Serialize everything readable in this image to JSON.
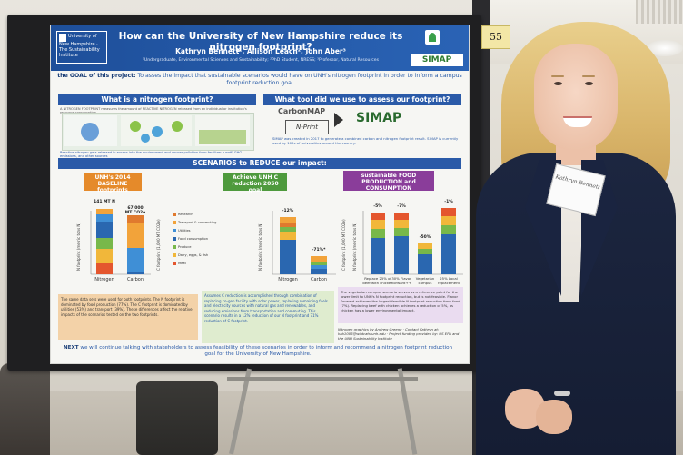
{
  "scene": {
    "board_number": "55",
    "badge_text": "Kathryn Bennett"
  },
  "poster": {
    "logo_text": "University of New Hampshire · The Sustainability Institute",
    "title": "How can the University of New Hampshire reduce its nitrogen footprint?",
    "authors": "Kathryn Bennett¹, Allison Leach², John Aber³",
    "affiliations": "¹Undergraduate, Environmental Sciences and Sustainability; ²PhD Student, NRESS; ³Professor, Natural Resources",
    "simap_top": "SIMAP",
    "goal_prefix": "the GOAL of this project:",
    "goal_text": "To asses the impact that sustainable scenarios would have on UNH's nitrogen footprint in order to inform a campus footprint reduction goal",
    "sec_what": "What is a nitrogen footprint?",
    "what_text": "A NITROGEN FOOTPRINT measures the amount of REACTIVE NITROGEN released from an individual or institution's resource consumption",
    "what_caption": "Reactive nitrogen gets released in excess into the environment and causes pollution from fertilizer runoff, GHG emissions, and other sources",
    "sec_tool": "What tool did we use to assess our footprint?",
    "carbonmap": "CarbonMAP",
    "nprint": "N-Print",
    "simap_big": "SIMAP",
    "tool_text": "SIMAP was created in 2017 to generate a combined carbon and nitrogen footprint result. SIMAP is currently used by 100s of universities around the country.",
    "sec_scen": "SCENARIOS to REDUCE our impact:",
    "tag_base": "UNH's 2014 BASELINE footprints",
    "tag_goal": "Achieve UNH C reduction 2050 goal",
    "tag_food": "sustainable FOOD PRODUCTION and CONSUMPTION",
    "box_orange": "The same data sets were used for both footprints. The N footprint is dominated by food production (77%). The C footprint is dominated by utilities (53%) and transport (39%). These differences affect the relative impacts of the scenarios tested on the two footprints.",
    "box_green": "Assumes C reduction is accomplished through combination of replacing co-gen facility with solar power, replacing remaining fuels and electricity sources with natural gas and renewables, and reducing emissions from transportation and commuting. This scenario results in a 12% reduction of our N footprint and 71% reduction of C footprint.",
    "box_purple": "The vegetarian campus scenario serves as a reference point for the lower limit to UNH's N footprint reduction, but is not feasible. Flavor Forward achieves the largest feasible N footprint reduction from food (7%). Replacing beef with chicken achieves a reduction of 5%, as chicken has a lower environmental impact.",
    "credits": "Nitrogen graphics by Andrew Greene · Contact Kathryn at: kab1006@wildcats.unh.edu · Project funding provided by: US EPA and the UNH Sustainability Institute",
    "next_prefix": "NEXT",
    "next_text": "we will continue talking with stakeholders to assess feasibility of these scenarios in order to inform and recommend a nitrogen footprint reduction goal for the University of New Hampshire."
  },
  "chart_data": [
    {
      "type": "bar",
      "title": "UNH's 2014 BASELINE footprints",
      "categories": [
        "Nitrogen",
        "Carbon"
      ],
      "data_labels": [
        "141 MT N",
        "67,000 MT CO2e"
      ],
      "ylabel_left": "N footprint (metric tons N)",
      "ylabel_right": "C footprint (1,000 MT CO2e)",
      "legend": [
        "Research",
        "Transport & commuting",
        "Utilities",
        "Food consumption",
        "Produce",
        "Dairy, eggs, & fish",
        "Meat"
      ]
    },
    {
      "type": "bar",
      "title": "Achieve UNH C reduction 2050 goal",
      "categories": [
        "Nitrogen",
        "Carbon"
      ],
      "data_labels": [
        "-12%",
        "-71%*"
      ],
      "ylabel_left": "N footprint (metric tons N)",
      "ylabel_right": "C footprint (1,000 MT CO2e)"
    },
    {
      "type": "bar",
      "title": "sustainable FOOD PRODUCTION and CONSUMPTION",
      "categories": [
        "Replace 25% of beef with chicken",
        "30% Flavor Forward++",
        "Vegetarian campus",
        "25% Local replacement"
      ],
      "data_labels": [
        "-5%",
        "-7%",
        "-50%",
        "-1%"
      ],
      "ylabel": "N footprint (metric tons N)"
    }
  ],
  "colors": {
    "research": "#e07a2e",
    "transport": "#f2a33a",
    "utilities": "#3f8fd6",
    "food": "#2a67b0",
    "produce": "#78b84a",
    "dairy": "#f1b73a",
    "meat": "#e4562e"
  }
}
